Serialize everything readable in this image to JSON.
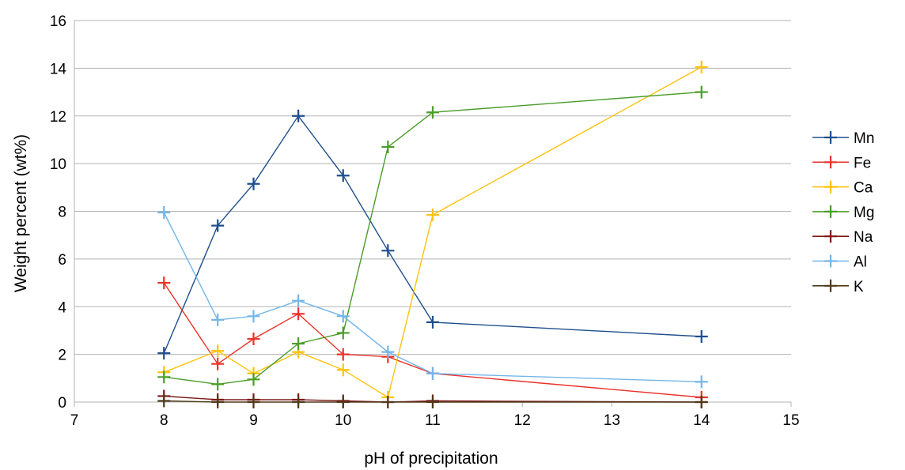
{
  "chart_data": {
    "type": "line",
    "title": "",
    "xlabel": "pH of precipitation",
    "ylabel": "Weight percent (wt%)",
    "xlim": [
      7,
      15
    ],
    "ylim": [
      0,
      16
    ],
    "xticks": [
      7,
      8,
      9,
      10,
      11,
      12,
      13,
      14,
      15
    ],
    "yticks": [
      0,
      2,
      4,
      6,
      8,
      10,
      12,
      14,
      16
    ],
    "grid": "horizontal",
    "legend_position": "right",
    "series": [
      {
        "name": "Mn",
        "color": "#1f4e8c",
        "x": [
          8,
          8.6,
          9,
          9.5,
          10,
          10.5,
          11,
          14
        ],
        "y": [
          2.05,
          7.4,
          9.15,
          12.0,
          9.5,
          6.35,
          3.35,
          2.75
        ]
      },
      {
        "name": "Fe",
        "color": "#e8332a",
        "x": [
          8,
          8.6,
          9,
          9.5,
          10,
          10.5,
          11,
          14
        ],
        "y": [
          5.0,
          1.6,
          2.65,
          3.7,
          2.0,
          1.9,
          1.2,
          0.2
        ]
      },
      {
        "name": "Ca",
        "color": "#ffc20e",
        "x": [
          8,
          8.6,
          9,
          9.5,
          10,
          10.5,
          11,
          14
        ],
        "y": [
          1.25,
          2.15,
          1.2,
          2.1,
          1.35,
          0.2,
          7.85,
          14.05
        ]
      },
      {
        "name": "Mg",
        "color": "#4a9d2a",
        "x": [
          8,
          8.6,
          9,
          9.5,
          10,
          10.5,
          11,
          14
        ],
        "y": [
          1.05,
          0.75,
          0.95,
          2.45,
          2.9,
          10.7,
          12.15,
          13.0
        ]
      },
      {
        "name": "Na",
        "color": "#7f1818",
        "x": [
          8,
          8.6,
          9,
          9.5,
          10,
          10.5,
          11,
          14
        ],
        "y": [
          0.25,
          0.1,
          0.1,
          0.1,
          0.05,
          0.0,
          0.05,
          0.0
        ]
      },
      {
        "name": "Al",
        "color": "#74b6e8",
        "x": [
          8,
          8.6,
          9,
          9.5,
          10,
          10.5,
          11,
          14
        ],
        "y": [
          7.95,
          3.45,
          3.6,
          4.25,
          3.6,
          2.1,
          1.2,
          0.85
        ]
      },
      {
        "name": "K",
        "color": "#4f3a1a",
        "x": [
          8,
          8.6,
          9,
          9.5,
          10,
          10.5,
          11,
          14
        ],
        "y": [
          0.05,
          0.0,
          0.0,
          0.0,
          0.0,
          0.0,
          0.0,
          0.0
        ]
      }
    ]
  }
}
